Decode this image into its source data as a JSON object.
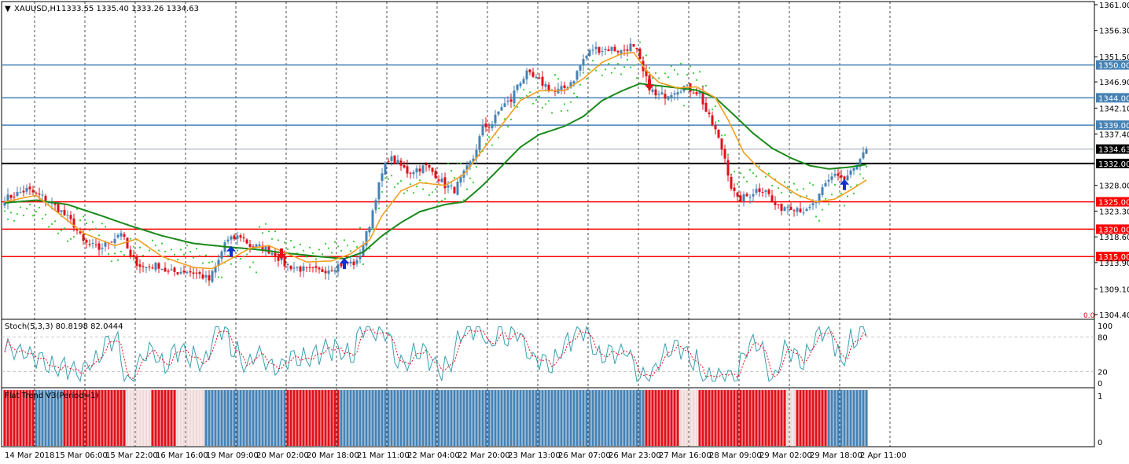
{
  "header": {
    "symbol": "XAUUSD,H1",
    "quotes": "1333.55 1335.40 1333.26 1334.63",
    "marker": "▼"
  },
  "main_panel": {
    "y_ticks": [
      "1361.00",
      "1356.30",
      "1351.50",
      "1346.90",
      "1342.10",
      "1337.40",
      "1328.00",
      "1323.30",
      "1318.60",
      "1313.90",
      "1309.10",
      "1304.40"
    ],
    "level_labels": [
      "1350.00",
      "1344.00",
      "1339.00",
      "1334.63",
      "1332.00",
      "1325.00",
      "1320.00",
      "1315.00"
    ],
    "corner_text": "0.0"
  },
  "stoch_panel": {
    "title": "Stoch(5,3,3) 80.8198 82.0444",
    "y_ticks": [
      "100",
      "80",
      "20",
      "0"
    ]
  },
  "trend_panel": {
    "title": "Flat Trend V3(Period=1)",
    "y_ticks": [
      "1",
      "0"
    ]
  },
  "x_axis": {
    "labels": [
      "14 Mar 2018",
      "15 Mar 06:00",
      "15 Mar 22:00",
      "16 Mar 16:00",
      "19 Mar 09:00",
      "20 Mar 02:00",
      "20 Mar 18:00",
      "21 Mar 11:00",
      "22 Mar 04:00",
      "22 Mar 20:00",
      "23 Mar 13:00",
      "26 Mar 07:00",
      "26 Mar 23:00",
      "27 Mar 16:00",
      "28 Mar 09:00",
      "29 Mar 02:00",
      "29 Mar 18:00",
      "2 Apr 11:00"
    ]
  },
  "colors": {
    "bull": "#4682b4",
    "bear": "#e0101a",
    "ma_fast": "#f0a020",
    "ma_slow": "#1a8a1a",
    "sar": "#32cd32",
    "level_blue": "#4682b4",
    "level_red": "#ff0000",
    "level_black": "#000000",
    "stoch_main": "#3aa0b0",
    "stoch_signal": "#e0101a",
    "arrow_up": "#1030d0",
    "arrow_down": "#e0101a"
  },
  "chart_data": {
    "type": "candlestick",
    "symbol": "XAUUSD",
    "timeframe": "H1",
    "ohlc_last": {
      "open": 1333.55,
      "high": 1335.4,
      "low": 1333.26,
      "close": 1334.63
    },
    "ylim": [
      1304.4,
      1361.0
    ],
    "horizontal_levels": [
      {
        "price": 1350.0,
        "color": "blue"
      },
      {
        "price": 1344.0,
        "color": "blue"
      },
      {
        "price": 1339.0,
        "color": "blue"
      },
      {
        "price": 1334.63,
        "color": "gray"
      },
      {
        "price": 1332.0,
        "color": "black"
      },
      {
        "price": 1325.0,
        "color": "red"
      },
      {
        "price": 1320.0,
        "color": "red"
      },
      {
        "price": 1315.0,
        "color": "red"
      }
    ],
    "price_path": [
      [
        0,
        1325.5
      ],
      [
        7,
        1327.2
      ],
      [
        13,
        1325.6
      ],
      [
        18,
        1323.2
      ],
      [
        22,
        1320.8
      ],
      [
        25,
        1317.6
      ],
      [
        30,
        1316.4
      ],
      [
        35,
        1318.5
      ],
      [
        37,
        1319.6
      ],
      [
        40,
        1314.8
      ],
      [
        44,
        1313.0
      ],
      [
        49,
        1313.4
      ],
      [
        52,
        1312.0
      ],
      [
        57,
        1312.4
      ],
      [
        61,
        1312.0
      ],
      [
        65,
        1310.7
      ],
      [
        68,
        1314.2
      ],
      [
        70,
        1317.6
      ],
      [
        75,
        1318.8
      ],
      [
        78,
        1317.0
      ],
      [
        83,
        1316.5
      ],
      [
        86,
        1315.4
      ],
      [
        89,
        1313.6
      ],
      [
        92,
        1313.0
      ],
      [
        96,
        1312.5
      ],
      [
        100,
        1312.3
      ],
      [
        104,
        1313.0
      ],
      [
        108,
        1313.8
      ],
      [
        112,
        1313.8
      ],
      [
        114,
        1317.3
      ],
      [
        116,
        1320.9
      ],
      [
        118,
        1326.0
      ],
      [
        120,
        1330.0
      ],
      [
        122,
        1333.1
      ],
      [
        125,
        1332.0
      ],
      [
        128,
        1330.5
      ],
      [
        131,
        1331.0
      ],
      [
        134,
        1331.4
      ],
      [
        137,
        1330.0
      ],
      [
        140,
        1328.0
      ],
      [
        143,
        1327.2
      ],
      [
        146,
        1330.0
      ],
      [
        149,
        1333.0
      ],
      [
        152,
        1338.5
      ],
      [
        155,
        1339.3
      ],
      [
        158,
        1342.5
      ],
      [
        161,
        1343.5
      ],
      [
        163,
        1346.5
      ],
      [
        166,
        1348.3
      ],
      [
        169,
        1347.3
      ],
      [
        172,
        1346.3
      ],
      [
        175,
        1345.0
      ],
      [
        178,
        1345.8
      ],
      [
        181,
        1347.5
      ],
      [
        184,
        1351.0
      ],
      [
        187,
        1353.0
      ],
      [
        190,
        1352.8
      ],
      [
        193,
        1353.0
      ],
      [
        196,
        1352.5
      ],
      [
        199,
        1353.5
      ],
      [
        201,
        1352.3
      ],
      [
        203,
        1348.6
      ],
      [
        205,
        1346.0
      ],
      [
        207,
        1344.3
      ],
      [
        210,
        1344.5
      ],
      [
        213,
        1345.4
      ],
      [
        216,
        1346.0
      ],
      [
        219,
        1345.3
      ],
      [
        221,
        1344.8
      ],
      [
        223,
        1341.5
      ],
      [
        226,
        1338.0
      ],
      [
        229,
        1333.0
      ],
      [
        231,
        1327.8
      ],
      [
        233,
        1325.3
      ],
      [
        236,
        1326.0
      ],
      [
        239,
        1327.2
      ],
      [
        242,
        1327.4
      ],
      [
        244,
        1325.0
      ],
      [
        246,
        1323.8
      ],
      [
        249,
        1324.3
      ],
      [
        252,
        1324.0
      ],
      [
        255,
        1323.1
      ],
      [
        258,
        1325.0
      ],
      [
        261,
        1328.0
      ],
      [
        264,
        1330.3
      ],
      [
        267,
        1329.0
      ],
      [
        269,
        1330.4
      ],
      [
        271,
        1331.5
      ],
      [
        273,
        1333.5
      ],
      [
        274,
        1334.63
      ]
    ],
    "ma_fast_path": [
      [
        0,
        1325.0
      ],
      [
        10,
        1326.2
      ],
      [
        18,
        1322.5
      ],
      [
        25,
        1319.3
      ],
      [
        35,
        1317.0
      ],
      [
        42,
        1318.2
      ],
      [
        50,
        1315.0
      ],
      [
        60,
        1313.0
      ],
      [
        66,
        1312.8
      ],
      [
        70,
        1314.0
      ],
      [
        78,
        1316.5
      ],
      [
        84,
        1317.0
      ],
      [
        90,
        1315.5
      ],
      [
        96,
        1314.0
      ],
      [
        104,
        1314.2
      ],
      [
        110,
        1315.5
      ],
      [
        116,
        1318.0
      ],
      [
        120,
        1322.5
      ],
      [
        126,
        1327.0
      ],
      [
        132,
        1328.5
      ],
      [
        140,
        1328.0
      ],
      [
        146,
        1330.0
      ],
      [
        152,
        1334.5
      ],
      [
        158,
        1339.0
      ],
      [
        164,
        1343.5
      ],
      [
        170,
        1345.3
      ],
      [
        178,
        1345.3
      ],
      [
        184,
        1347.5
      ],
      [
        190,
        1350.5
      ],
      [
        196,
        1352.0
      ],
      [
        200,
        1352.3
      ],
      [
        204,
        1349.0
      ],
      [
        208,
        1346.8
      ],
      [
        214,
        1345.8
      ],
      [
        220,
        1346.0
      ],
      [
        226,
        1344.0
      ],
      [
        230,
        1340.0
      ],
      [
        235,
        1334.0
      ],
      [
        240,
        1331.0
      ],
      [
        246,
        1328.5
      ],
      [
        252,
        1326.3
      ],
      [
        258,
        1325.0
      ],
      [
        264,
        1325.5
      ],
      [
        270,
        1327.5
      ],
      [
        274,
        1329.0
      ]
    ],
    "ma_slow_path": [
      [
        0,
        1324.8
      ],
      [
        10,
        1325.3
      ],
      [
        20,
        1324.5
      ],
      [
        30,
        1322.6
      ],
      [
        40,
        1320.6
      ],
      [
        50,
        1318.8
      ],
      [
        60,
        1317.4
      ],
      [
        70,
        1316.8
      ],
      [
        80,
        1316.3
      ],
      [
        90,
        1315.6
      ],
      [
        100,
        1315.0
      ],
      [
        108,
        1314.6
      ],
      [
        114,
        1315.8
      ],
      [
        120,
        1318.8
      ],
      [
        126,
        1321.2
      ],
      [
        132,
        1323.2
      ],
      [
        140,
        1324.5
      ],
      [
        146,
        1325.0
      ],
      [
        152,
        1328.0
      ],
      [
        158,
        1331.5
      ],
      [
        164,
        1335.0
      ],
      [
        170,
        1337.3
      ],
      [
        178,
        1338.8
      ],
      [
        184,
        1340.6
      ],
      [
        190,
        1343.5
      ],
      [
        196,
        1345.2
      ],
      [
        202,
        1346.6
      ],
      [
        208,
        1346.2
      ],
      [
        214,
        1345.8
      ],
      [
        220,
        1345.4
      ],
      [
        226,
        1344.0
      ],
      [
        232,
        1340.8
      ],
      [
        238,
        1337.5
      ],
      [
        244,
        1334.8
      ],
      [
        250,
        1333.0
      ],
      [
        256,
        1331.6
      ],
      [
        262,
        1331.0
      ],
      [
        268,
        1331.3
      ],
      [
        274,
        1331.8
      ]
    ],
    "signals": [
      {
        "index": 72,
        "direction": "up",
        "price": 1315.8
      },
      {
        "index": 88,
        "direction": "down",
        "price": 1315.6
      },
      {
        "index": 108,
        "direction": "up",
        "price": 1313.6
      },
      {
        "index": 205,
        "direction": "down",
        "price": 1346.5
      },
      {
        "index": 267,
        "direction": "up",
        "price": 1328.0
      }
    ],
    "stochastic": {
      "k": 80.8198,
      "d": 82.0444,
      "params": [
        5,
        3,
        3
      ],
      "levels": [
        20,
        80
      ]
    },
    "flat_trend_segments": [
      {
        "from": 0,
        "to": 9,
        "state": "red"
      },
      {
        "from": 10,
        "to": 18,
        "state": "blue"
      },
      {
        "from": 19,
        "to": 38,
        "state": "red"
      },
      {
        "from": 39,
        "to": 46,
        "state": "flat"
      },
      {
        "from": 47,
        "to": 54,
        "state": "red"
      },
      {
        "from": 55,
        "to": 63,
        "state": "flat"
      },
      {
        "from": 64,
        "to": 89,
        "state": "blue"
      },
      {
        "from": 90,
        "to": 106,
        "state": "red"
      },
      {
        "from": 107,
        "to": 203,
        "state": "blue"
      },
      {
        "from": 204,
        "to": 214,
        "state": "red"
      },
      {
        "from": 215,
        "to": 220,
        "state": "flat"
      },
      {
        "from": 221,
        "to": 248,
        "state": "red"
      },
      {
        "from": 249,
        "to": 251,
        "state": "flat"
      },
      {
        "from": 252,
        "to": 261,
        "state": "red"
      },
      {
        "from": 262,
        "to": 274,
        "state": "blue"
      }
    ]
  }
}
